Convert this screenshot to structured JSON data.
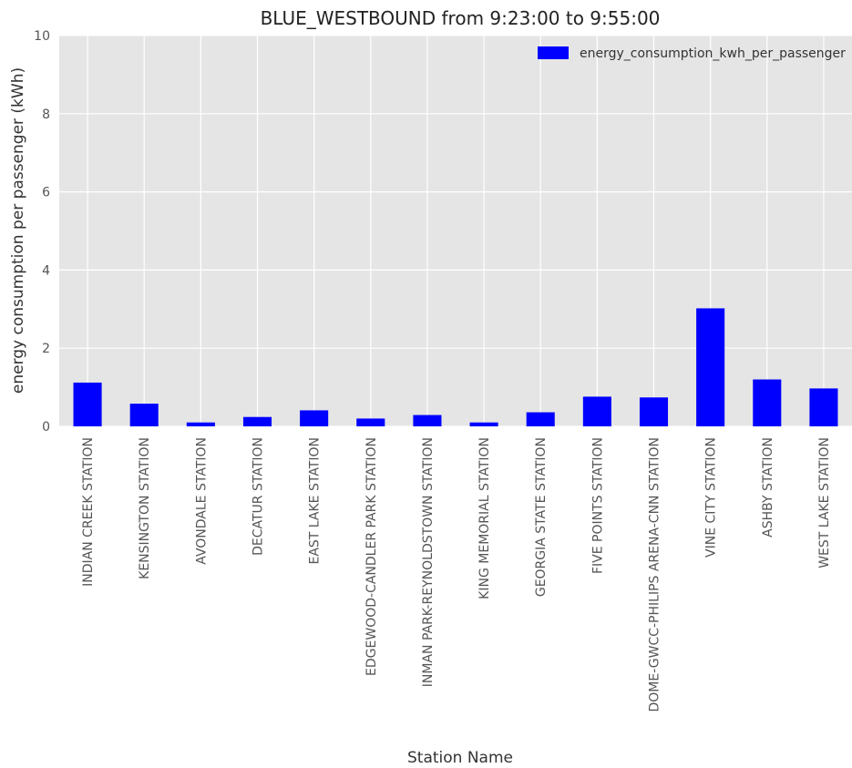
{
  "chart_data": {
    "type": "bar",
    "title": "BLUE_WESTBOUND from  9:23:00 to  9:55:00",
    "xlabel": "Station Name",
    "ylabel": "energy consumption per passenger (kWh)",
    "ylim": [
      0,
      10
    ],
    "yticks": [
      0,
      2,
      4,
      6,
      8,
      10
    ],
    "grid": true,
    "legend_position": "top-right",
    "categories": [
      "INDIAN CREEK STATION",
      "KENSINGTON STATION",
      "AVONDALE STATION",
      "DECATUR STATION",
      "EAST LAKE STATION",
      "EDGEWOOD-CANDLER PARK STATION",
      "INMAN PARK-REYNOLDSTOWN STATION",
      "KING MEMORIAL STATION",
      "GEORGIA STATE STATION",
      "FIVE POINTS STATION",
      "DOME-GWCC-PHILIPS ARENA-CNN STATION",
      "VINE CITY STATION",
      "ASHBY STATION",
      "WEST LAKE STATION"
    ],
    "series": [
      {
        "name": "energy_consumption_kwh_per_passenger",
        "color": "#0000ff",
        "values": [
          1.12,
          0.58,
          0.1,
          0.24,
          0.41,
          0.2,
          0.29,
          0.1,
          0.36,
          0.76,
          0.74,
          3.02,
          1.2,
          0.97
        ]
      }
    ],
    "colors": {
      "plot_background": "#e5e5e5",
      "grid": "#ffffff",
      "bar": "#0000ff"
    }
  }
}
